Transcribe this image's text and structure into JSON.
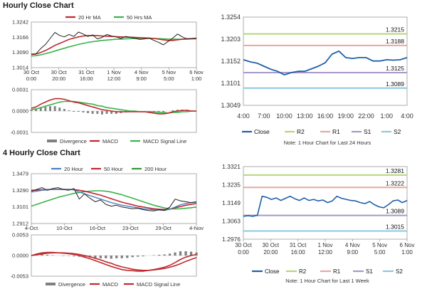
{
  "sections": [
    {
      "title": "Hourly Close Chart"
    },
    {
      "title": "4 Hourly Close Chart"
    }
  ],
  "colors": {
    "close": "#1f5fa8",
    "ma_short": "#c0282e",
    "ma_long": "#3bb34a",
    "ma_200": "#2e9a3e",
    "ma_20h_4h": "#4a7fc0",
    "r2": "#b5d67a",
    "r1": "#e8a8a0",
    "s1": "#a898c8",
    "s2": "#8cc8e0",
    "divergence": "#808080",
    "border": "#9a9a9a",
    "tick": "#333333"
  },
  "chart_data": [
    {
      "id": "hourly_price",
      "type": "line",
      "title": "Hourly Close Chart",
      "legend": [
        "20 Hr MA",
        "50 Hrs MA"
      ],
      "y_ticks": [
        "1.3242",
        "1.3166",
        "1.3090",
        "1.3014"
      ],
      "ylim": [
        1.3014,
        1.3242
      ],
      "x_ticks": [
        [
          "30 Oct",
          "0:00"
        ],
        [
          "30 Oct",
          "20:00"
        ],
        [
          "31 Oct",
          "16:00"
        ],
        [
          "1 Nov",
          "12:00"
        ],
        [
          "4 Nov",
          "9:00"
        ],
        [
          "5 Nov",
          "5:00"
        ],
        [
          "6 Nov",
          "1:00"
        ]
      ],
      "series": [
        {
          "name": "Close",
          "values": [
            1.3082,
            1.3083,
            1.311,
            1.313,
            1.316,
            1.319,
            1.3175,
            1.3168,
            1.318,
            1.317,
            1.3192,
            1.3182,
            1.317,
            1.3178,
            1.3158,
            1.3165,
            1.318,
            1.3172,
            1.3168,
            1.316,
            1.317,
            1.3166,
            1.316,
            1.3155,
            1.3158,
            1.3162,
            1.315,
            1.314,
            1.3128,
            1.3145,
            1.3162,
            1.3182,
            1.3168,
            1.3158,
            1.316,
            1.3162
          ]
        },
        {
          "name": "20 Hr MA",
          "values": [
            1.308,
            1.3082,
            1.309,
            1.31,
            1.3112,
            1.3125,
            1.3135,
            1.3145,
            1.3155,
            1.3162,
            1.3168,
            1.3172,
            1.3174,
            1.3175,
            1.3174,
            1.3172,
            1.3171,
            1.317,
            1.3169,
            1.3168,
            1.3167,
            1.3166,
            1.3165,
            1.3164,
            1.3163,
            1.3162,
            1.316,
            1.3157,
            1.3153,
            1.315,
            1.315,
            1.3153,
            1.3156,
            1.3158,
            1.3159,
            1.316
          ]
        },
        {
          "name": "50 Hrs MA",
          "values": [
            1.3072,
            1.3074,
            1.3078,
            1.3084,
            1.309,
            1.3097,
            1.3104,
            1.3111,
            1.3118,
            1.3124,
            1.313,
            1.3135,
            1.314,
            1.3144,
            1.3147,
            1.315,
            1.3152,
            1.3154,
            1.3156,
            1.3157,
            1.3158,
            1.3159,
            1.316,
            1.316,
            1.316,
            1.316,
            1.316,
            1.3159,
            1.3158,
            1.3157,
            1.3156,
            1.3156,
            1.3156,
            1.3157,
            1.3158,
            1.3158
          ]
        }
      ]
    },
    {
      "id": "hourly_macd",
      "type": "line",
      "y_ticks": [
        "0.0031",
        "0.0000",
        "-0.0031"
      ],
      "ylim": [
        -0.0031,
        0.0031
      ],
      "legend": [
        "Divergence",
        "MACD",
        "MACD Signal Line"
      ],
      "series": [
        {
          "name": "MACD",
          "values": [
            0.0004,
            0.0006,
            0.001,
            0.0013,
            0.0016,
            0.0018,
            0.0018,
            0.0017,
            0.0015,
            0.0013,
            0.0012,
            0.001,
            0.0008,
            0.0006,
            0.0004,
            0.0002,
            0.0001,
            0.0,
            -0.0001,
            -0.0001,
            -0.0001,
            -0.0001,
            -0.0001,
            -0.0001,
            -0.0001,
            -0.0002,
            -0.0003,
            -0.0004,
            -0.0004,
            -0.0003,
            -0.0001,
            0.0,
            0.0001,
            0.0001,
            0.0,
            0.0
          ]
        },
        {
          "name": "MACD Signal Line",
          "values": [
            0.0002,
            0.0003,
            0.0005,
            0.0007,
            0.0009,
            0.0011,
            0.0013,
            0.0014,
            0.0014,
            0.0014,
            0.0013,
            0.0012,
            0.0011,
            0.001,
            0.0008,
            0.0007,
            0.0005,
            0.0004,
            0.0003,
            0.0002,
            0.0001,
            0.0,
            0.0,
            -0.0001,
            -0.0001,
            -0.0001,
            -0.0001,
            -0.0002,
            -0.0002,
            -0.0003,
            -0.0002,
            -0.0002,
            -0.0001,
            -0.0001,
            0.0,
            0.0
          ]
        },
        {
          "name": "Divergence",
          "values": [
            0.0002,
            0.0003,
            0.0005,
            0.0006,
            0.0007,
            0.0007,
            0.0005,
            0.0003,
            0.0001,
            -0.0001,
            -0.0001,
            -0.0002,
            -0.0003,
            -0.0004,
            -0.0004,
            -0.0005,
            -0.0004,
            -0.0004,
            -0.0004,
            -0.0003,
            -0.0002,
            -0.0001,
            -0.0001,
            0.0,
            0.0,
            -0.0001,
            -0.0002,
            -0.0002,
            -0.0002,
            0.0,
            0.0001,
            0.0002,
            0.0002,
            0.0002,
            0.0,
            0.0
          ]
        }
      ]
    },
    {
      "id": "hourly_24h",
      "type": "line",
      "note": "Note: 1 Hour Chart for Last 24 Hours",
      "y_ticks": [
        "1.3254",
        "1.3203",
        "1.3152",
        "1.3101",
        "1.3049"
      ],
      "ylim": [
        1.3049,
        1.3254
      ],
      "x_ticks": [
        "4:00",
        "7:00",
        "10:00",
        "13:00",
        "16:00",
        "19:00",
        "22:00",
        "1:00",
        "4:00"
      ],
      "legend": [
        "Close",
        "R2",
        "R1",
        "S1",
        "S2"
      ],
      "levels": [
        {
          "name": "R2",
          "value": 1.3215,
          "label": "1.3215"
        },
        {
          "name": "R1",
          "value": 1.3188,
          "label": "1.3188"
        },
        {
          "name": "S1",
          "value": 1.3125,
          "label": "1.3125"
        },
        {
          "name": "S2",
          "value": 1.3089,
          "label": "1.3089"
        }
      ],
      "series": [
        {
          "name": "Close",
          "values": [
            1.3155,
            1.315,
            1.3147,
            1.314,
            1.3133,
            1.3128,
            1.312,
            1.3125,
            1.3128,
            1.3128,
            1.3134,
            1.314,
            1.3148,
            1.3168,
            1.3175,
            1.316,
            1.3158,
            1.316,
            1.316,
            1.3152,
            1.3152,
            1.3155,
            1.3154,
            1.3155,
            1.316
          ]
        }
      ]
    },
    {
      "id": "four_hourly_price",
      "type": "line",
      "title": "4 Hourly Close Chart",
      "legend": [
        "20 Hour",
        "50 Hour",
        "200 Hour"
      ],
      "y_ticks": [
        "1.3479",
        "1.3290",
        "1.3101",
        "1.2912"
      ],
      "ylim": [
        1.2912,
        1.3479
      ],
      "x_ticks": [
        "4-Oct",
        "10-Oct",
        "16-Oct",
        "23-Oct",
        "29-Oct",
        "4-Nov"
      ],
      "series": [
        {
          "name": "Close",
          "values": [
            1.328,
            1.33,
            1.332,
            1.329,
            1.331,
            1.332,
            1.33,
            1.329,
            1.331,
            1.319,
            1.325,
            1.32,
            1.316,
            1.318,
            1.313,
            1.311,
            1.312,
            1.31,
            1.309,
            1.308,
            1.3085,
            1.307,
            1.306,
            1.3055,
            1.307,
            1.306,
            1.31,
            1.319,
            1.317,
            1.316,
            1.315,
            1.316
          ]
        },
        {
          "name": "20 Hour",
          "values": [
            1.327,
            1.328,
            1.329,
            1.3295,
            1.33,
            1.33,
            1.33,
            1.33,
            1.3295,
            1.327,
            1.325,
            1.323,
            1.321,
            1.319,
            1.317,
            1.315,
            1.3135,
            1.312,
            1.311,
            1.31,
            1.309,
            1.308,
            1.3075,
            1.3068,
            1.3065,
            1.3063,
            1.3075,
            1.31,
            1.3125,
            1.314,
            1.315,
            1.3155
          ]
        },
        {
          "name": "50 Hour",
          "values": [
            1.329,
            1.3292,
            1.3295,
            1.3298,
            1.33,
            1.33,
            1.33,
            1.33,
            1.3298,
            1.329,
            1.328,
            1.3265,
            1.325,
            1.3235,
            1.3215,
            1.3195,
            1.3175,
            1.3155,
            1.314,
            1.3125,
            1.311,
            1.31,
            1.309,
            1.308,
            1.3075,
            1.3072,
            1.3075,
            1.309,
            1.3105,
            1.312,
            1.313,
            1.314
          ]
        },
        {
          "name": "200 Hour",
          "values": [
            1.311,
            1.313,
            1.315,
            1.317,
            1.319,
            1.321,
            1.3225,
            1.324,
            1.3255,
            1.3265,
            1.3275,
            1.328,
            1.3285,
            1.3285,
            1.328,
            1.327,
            1.3255,
            1.324,
            1.322,
            1.32,
            1.318,
            1.316,
            1.314,
            1.312,
            1.3105,
            1.309,
            1.308,
            1.3078,
            1.308,
            1.3085,
            1.3092,
            1.31
          ]
        }
      ]
    },
    {
      "id": "four_hourly_macd",
      "type": "line",
      "y_ticks": [
        "0.0053",
        "0.0000",
        "-0.0053"
      ],
      "ylim": [
        -0.0053,
        0.0053
      ],
      "legend": [
        "Divergence",
        "MACD",
        "MACD Signal Line"
      ],
      "series": [
        {
          "name": "MACD",
          "values": [
            0.0,
            0.0004,
            0.0007,
            0.0008,
            0.0008,
            0.0007,
            0.0006,
            0.0005,
            0.0003,
            0.0,
            -0.0004,
            -0.0008,
            -0.0013,
            -0.0018,
            -0.0023,
            -0.0028,
            -0.0032,
            -0.0036,
            -0.0038,
            -0.0039,
            -0.004,
            -0.004,
            -0.0038,
            -0.0036,
            -0.0033,
            -0.003,
            -0.0025,
            -0.0018,
            -0.001,
            -0.0004,
            0.0,
            0.0003
          ]
        },
        {
          "name": "MACD Signal Line",
          "values": [
            0.0,
            0.0002,
            0.0004,
            0.0006,
            0.0007,
            0.0007,
            0.0007,
            0.0006,
            0.0005,
            0.0003,
            0.0,
            -0.0003,
            -0.0007,
            -0.0011,
            -0.0016,
            -0.002,
            -0.0025,
            -0.0029,
            -0.0032,
            -0.0035,
            -0.0037,
            -0.0038,
            -0.0038,
            -0.0037,
            -0.0035,
            -0.0033,
            -0.003,
            -0.0026,
            -0.0021,
            -0.0015,
            -0.001,
            -0.0005
          ]
        },
        {
          "name": "Divergence",
          "values": [
            0.0,
            0.0002,
            0.0003,
            0.0002,
            0.0001,
            0.0,
            -0.0001,
            -0.0001,
            -0.0002,
            -0.0003,
            -0.0004,
            -0.0005,
            -0.0006,
            -0.0007,
            -0.0007,
            -0.0008,
            -0.0007,
            -0.0007,
            -0.0006,
            -0.0004,
            -0.0003,
            -0.0002,
            0.0,
            0.0001,
            0.0002,
            0.0003,
            0.0005,
            0.0008,
            0.0011,
            0.0011,
            0.001,
            0.0008
          ]
        }
      ]
    },
    {
      "id": "four_hourly_week",
      "type": "line",
      "note": "Note: 1 Hour Chart for Last 1 Week",
      "y_ticks": [
        "1.3321",
        "1.3235",
        "1.3149",
        "1.3063",
        "1.2976"
      ],
      "ylim": [
        1.2976,
        1.3321
      ],
      "x_ticks": [
        [
          "30 Oct",
          "0:00"
        ],
        [
          "30 Oct",
          "20:00"
        ],
        [
          "31 Oct",
          "16:00"
        ],
        [
          "1 Nov",
          "12:00"
        ],
        [
          "4 Nov",
          "9:00"
        ],
        [
          "5 Nov",
          "5:00"
        ],
        [
          "6 Nov",
          "1:00"
        ]
      ],
      "legend": [
        "Close",
        "R2",
        "R1",
        "S1",
        "S2"
      ],
      "levels": [
        {
          "name": "R2",
          "value": 1.3281,
          "label": "1.3281"
        },
        {
          "name": "R1",
          "value": 1.3222,
          "label": "1.3222"
        },
        {
          "name": "S1",
          "value": 1.3089,
          "label": "1.3089"
        },
        {
          "name": "S2",
          "value": 1.3015,
          "label": "1.3015"
        }
      ],
      "series": [
        {
          "name": "Close",
          "values": [
            1.3085,
            1.3088,
            1.3085,
            1.309,
            1.318,
            1.3175,
            1.3165,
            1.3172,
            1.316,
            1.317,
            1.318,
            1.3168,
            1.316,
            1.3172,
            1.316,
            1.3165,
            1.3158,
            1.3162,
            1.315,
            1.3158,
            1.318,
            1.317,
            1.3165,
            1.316,
            1.3158,
            1.315,
            1.3145,
            1.3155,
            1.314,
            1.313,
            1.3125,
            1.314,
            1.3158,
            1.3162,
            1.315,
            1.316
          ]
        }
      ]
    }
  ]
}
